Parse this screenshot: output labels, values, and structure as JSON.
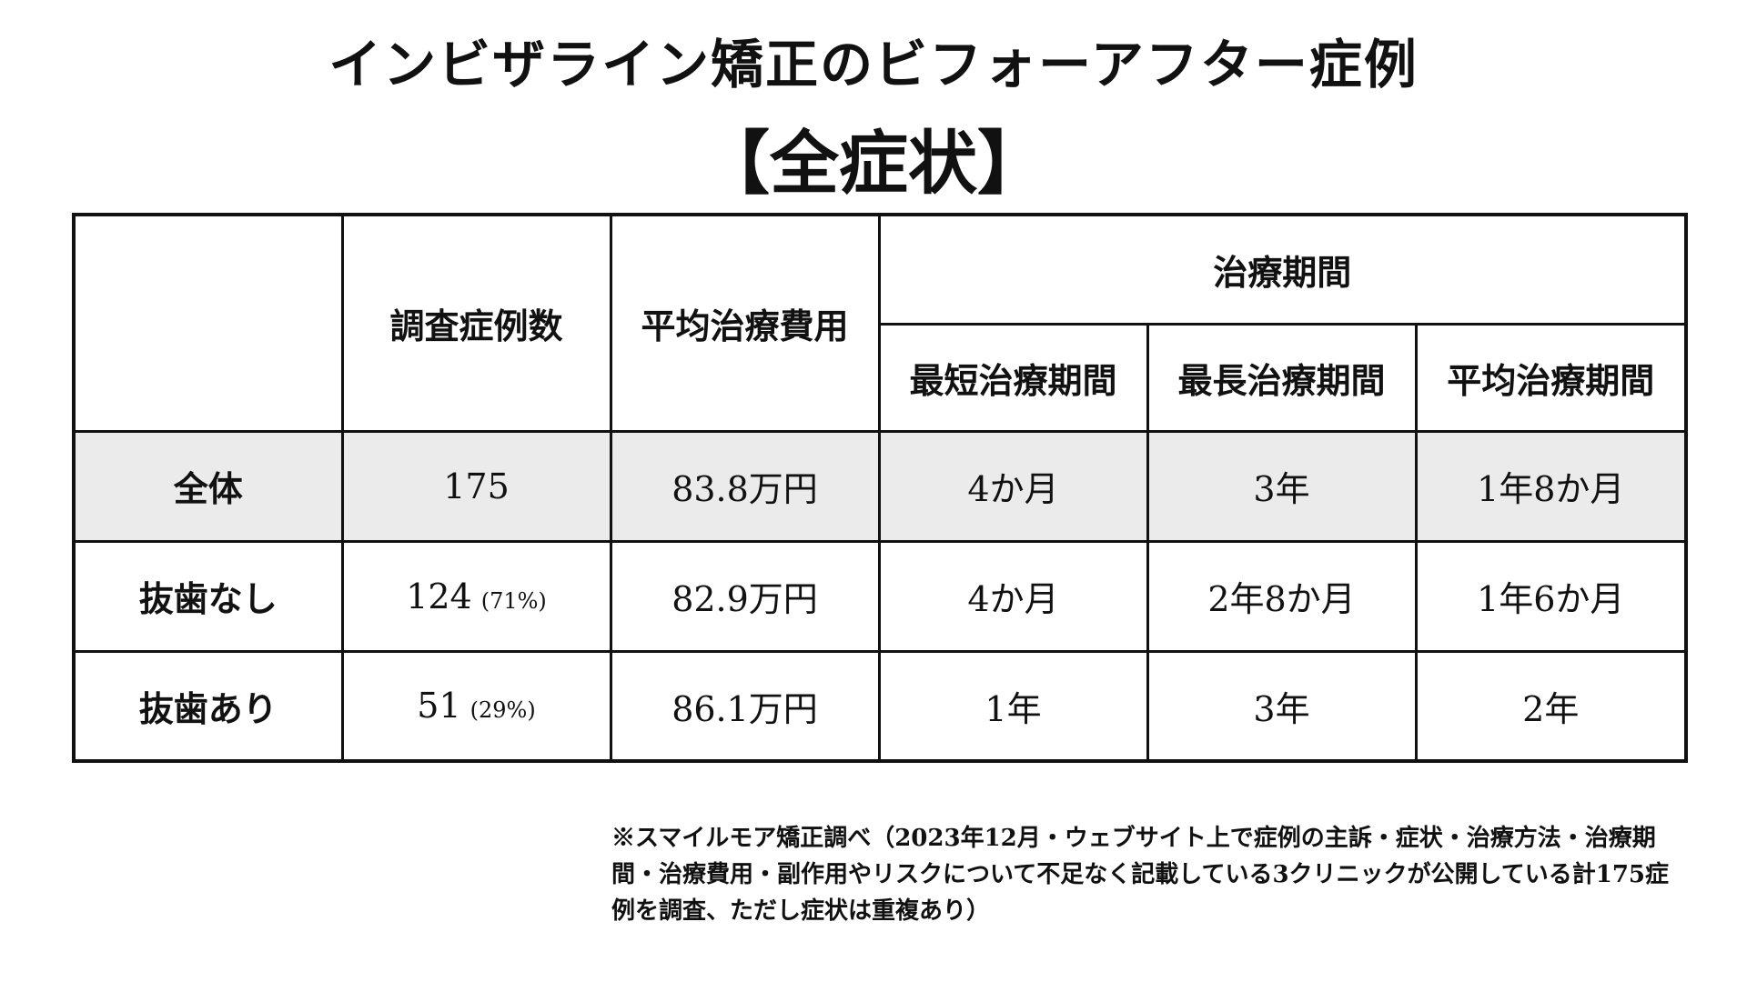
{
  "title": {
    "line1": "インビザライン矯正のビフォーアフター症例",
    "line2": "【全症状】"
  },
  "table": {
    "headers": {
      "cases": "調査症例数",
      "avg_cost": "平均治療費用",
      "period_group": "治療期間",
      "min_period": "最短治療期間",
      "max_period": "最長治療期間",
      "avg_period": "平均治療期間"
    },
    "rows": [
      {
        "label": "全体",
        "cases": "175",
        "pct": "",
        "avg_cost": "83.8万円",
        "min_period": "4か月",
        "max_period": "3年",
        "avg_period": "1年8か月"
      },
      {
        "label": "抜歯なし",
        "cases": "124",
        "pct": "(71%)",
        "avg_cost": "82.9万円",
        "min_period": "4か月",
        "max_period": "2年8か月",
        "avg_period": "1年6か月"
      },
      {
        "label": "抜歯あり",
        "cases": "51",
        "pct": "(29%)",
        "avg_cost": "86.1万円",
        "min_period": "1年",
        "max_period": "3年",
        "avg_period": "2年"
      }
    ]
  },
  "note": "※スマイルモア矯正調べ（2023年12月・ウェブサイト上で症例の主訴・症状・治療方法・治療期間・治療費用・副作用やリスクについて不足なく記載している3クリニックが公開している計175症例を調査、ただし症状は重複あり）"
}
